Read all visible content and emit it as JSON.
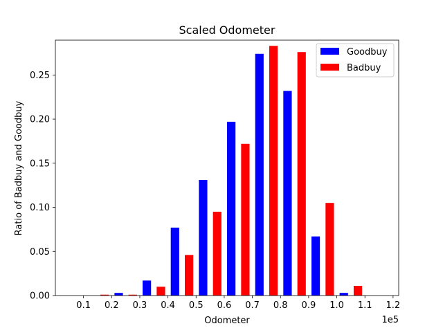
{
  "chart_data": {
    "type": "bar",
    "title": "Scaled Odometer",
    "xlabel": "Odometer",
    "ylabel": "Ratio of Badbuy and Goodbuy",
    "x_offset_label": "1e5",
    "xlim": [
      0.0,
      1.22
    ],
    "ylim": [
      0.0,
      0.2895
    ],
    "x_ticks": [
      0.1,
      0.2,
      0.3,
      0.4,
      0.5,
      0.6,
      0.7,
      0.8,
      0.9,
      1.0,
      1.1,
      1.2
    ],
    "x_tick_labels": [
      "0.1",
      "0.2",
      "0.3",
      "0.4",
      "0.5",
      "0.6",
      "0.7",
      "0.8",
      "0.9",
      "1.0",
      "1.1",
      "1.2"
    ],
    "y_ticks": [
      0.0,
      0.05,
      0.1,
      0.15,
      0.2,
      0.25
    ],
    "y_tick_labels": [
      "0.00",
      "0.05",
      "0.10",
      "0.15",
      "0.20",
      "0.25"
    ],
    "grid": false,
    "legend_position": "top-right",
    "series": [
      {
        "name": "Goodbuy",
        "color": "#0000ff",
        "x": [
          0.125,
          0.225,
          0.325,
          0.425,
          0.525,
          0.625,
          0.725,
          0.825,
          0.925,
          1.025
        ],
        "values": [
          0.0,
          0.003,
          0.017,
          0.077,
          0.131,
          0.197,
          0.274,
          0.232,
          0.067,
          0.003
        ]
      },
      {
        "name": "Badbuy",
        "color": "#ff0000",
        "x": [
          0.175,
          0.275,
          0.375,
          0.475,
          0.575,
          0.675,
          0.775,
          0.875,
          0.975,
          1.075
        ],
        "values": [
          0.001,
          0.001,
          0.01,
          0.046,
          0.095,
          0.172,
          0.283,
          0.276,
          0.105,
          0.011
        ]
      }
    ]
  }
}
